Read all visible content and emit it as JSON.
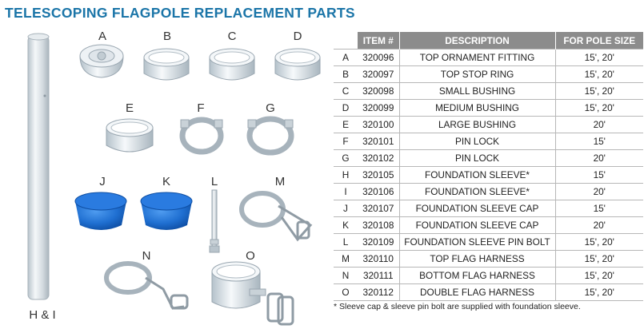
{
  "title": "TELESCOPING FLAGPOLE REPLACEMENT PARTS",
  "part_labels": [
    "A",
    "B",
    "C",
    "D",
    "E",
    "F",
    "G",
    "J",
    "K",
    "L",
    "M",
    "N",
    "O",
    "H & I"
  ],
  "table": {
    "headers": [
      "",
      "ITEM #",
      "DESCRIPTION",
      "FOR POLE SIZE"
    ],
    "rows": [
      {
        "letter": "A",
        "item": "320096",
        "description": "TOP ORNAMENT FITTING",
        "size": "15', 20'"
      },
      {
        "letter": "B",
        "item": "320097",
        "description": "TOP STOP RING",
        "size": "15', 20'"
      },
      {
        "letter": "C",
        "item": "320098",
        "description": "SMALL BUSHING",
        "size": "15', 20'"
      },
      {
        "letter": "D",
        "item": "320099",
        "description": "MEDIUM BUSHING",
        "size": "15', 20'"
      },
      {
        "letter": "E",
        "item": "320100",
        "description": "LARGE BUSHING",
        "size": "20'"
      },
      {
        "letter": "F",
        "item": "320101",
        "description": "PIN LOCK",
        "size": "15'"
      },
      {
        "letter": "G",
        "item": "320102",
        "description": "PIN LOCK",
        "size": "20'"
      },
      {
        "letter": "H",
        "item": "320105",
        "description": "FOUNDATION SLEEVE*",
        "size": "15'"
      },
      {
        "letter": "I",
        "item": "320106",
        "description": "FOUNDATION SLEEVE*",
        "size": "20'"
      },
      {
        "letter": "J",
        "item": "320107",
        "description": "FOUNDATION SLEEVE CAP",
        "size": "15'"
      },
      {
        "letter": "K",
        "item": "320108",
        "description": "FOUNDATION SLEEVE CAP",
        "size": "20'"
      },
      {
        "letter": "L",
        "item": "320109",
        "description": "FOUNDATION SLEEVE PIN BOLT",
        "size": "15', 20'"
      },
      {
        "letter": "M",
        "item": "320110",
        "description": "TOP FLAG HARNESS",
        "size": "15', 20'"
      },
      {
        "letter": "N",
        "item": "320111",
        "description": "BOTTOM FLAG HARNESS",
        "size": "15', 20'"
      },
      {
        "letter": "O",
        "item": "320112",
        "description": "DOUBLE FLAG HARNESS",
        "size": "15', 20'"
      }
    ]
  },
  "footnote": "* Sleeve cap & sleeve pin bolt are supplied with foundation sleeve.",
  "colors": {
    "title": "#1b75a8",
    "header_bg": "#8c8c8c",
    "cap_blue": "#1f6fd1",
    "metal": "#cfd6dc"
  }
}
